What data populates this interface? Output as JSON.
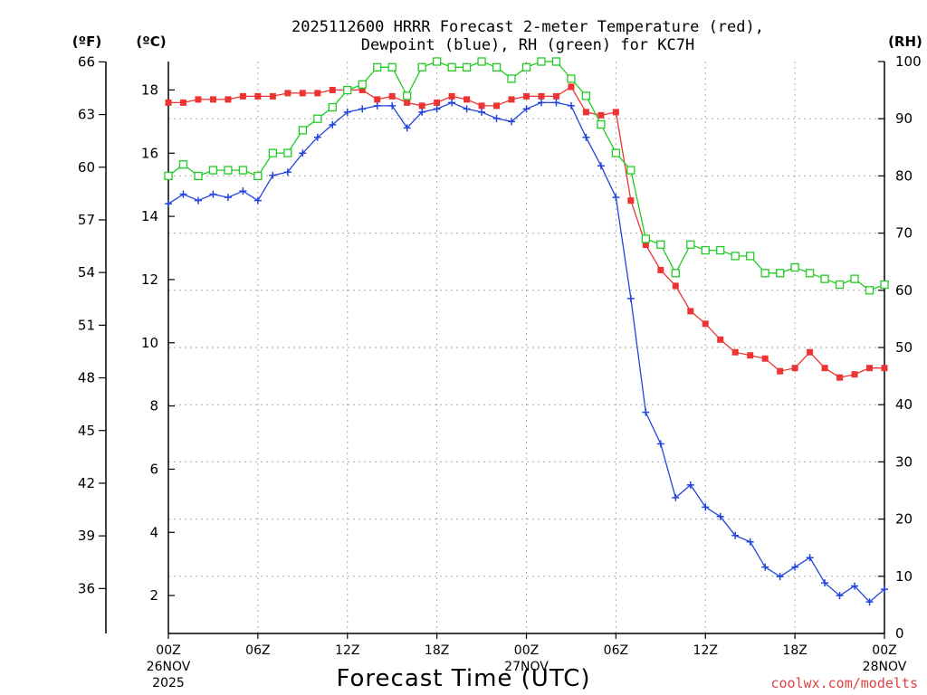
{
  "title_line1": "2025112600 HRRR Forecast 2-meter Temperature (red),",
  "title_line2": "Dewpoint (blue), RH (green) for KC7H",
  "unit_f": "(ºF)",
  "unit_c": "(ºC)",
  "unit_rh": "(RH)",
  "xlabel": "Forecast Time (UTC)",
  "credit": "coolwx.com/modelts",
  "chart_data": {
    "type": "line",
    "title": "2025112600 HRRR Forecast 2-meter Temperature (red), Dewpoint (blue), RH (green) for KC7H",
    "xlabel": "Forecast Time (UTC)",
    "x_hours": [
      0,
      1,
      2,
      3,
      4,
      5,
      6,
      7,
      8,
      9,
      10,
      11,
      12,
      13,
      14,
      15,
      16,
      17,
      18,
      19,
      20,
      21,
      22,
      23,
      24,
      25,
      26,
      27,
      28,
      29,
      30,
      31,
      32,
      33,
      34,
      35,
      36,
      37,
      38,
      39,
      40,
      41,
      42,
      43,
      44,
      45,
      46,
      47,
      48
    ],
    "xlim": [
      0,
      48
    ],
    "x_ticks": [
      {
        "h": 0,
        "label": "00Z",
        "sub1": "26NOV",
        "sub2": "2025"
      },
      {
        "h": 6,
        "label": "06Z",
        "sub1": "",
        "sub2": ""
      },
      {
        "h": 12,
        "label": "12Z",
        "sub1": "",
        "sub2": ""
      },
      {
        "h": 18,
        "label": "18Z",
        "sub1": "",
        "sub2": ""
      },
      {
        "h": 24,
        "label": "00Z",
        "sub1": "27NOV",
        "sub2": ""
      },
      {
        "h": 30,
        "label": "06Z",
        "sub1": "",
        "sub2": ""
      },
      {
        "h": 36,
        "label": "12Z",
        "sub1": "",
        "sub2": ""
      },
      {
        "h": 42,
        "label": "18Z",
        "sub1": "",
        "sub2": ""
      },
      {
        "h": 48,
        "label": "00Z",
        "sub1": "28NOV",
        "sub2": ""
      }
    ],
    "ylim_c": [
      0.8,
      18.9
    ],
    "y_ticks_c": [
      "2",
      "4",
      "6",
      "8",
      "10",
      "12",
      "14",
      "16",
      "18"
    ],
    "y_ticks_f": [
      "36",
      "39",
      "42",
      "45",
      "48",
      "51",
      "54",
      "57",
      "60",
      "63",
      "66"
    ],
    "ylim_rh": [
      0,
      100
    ],
    "y_ticks_rh": [
      "0",
      "10",
      "20",
      "30",
      "40",
      "50",
      "60",
      "70",
      "80",
      "90",
      "100"
    ],
    "series": [
      {
        "name": "Temperature",
        "units": "C",
        "color": "#ee3333",
        "marker": "filled-square",
        "values": [
          17.6,
          17.6,
          17.7,
          17.7,
          17.7,
          17.8,
          17.8,
          17.8,
          17.9,
          17.9,
          17.9,
          18.0,
          18.0,
          18.0,
          17.7,
          17.8,
          17.6,
          17.5,
          17.6,
          17.8,
          17.7,
          17.5,
          17.5,
          17.7,
          17.8,
          17.8,
          17.8,
          18.1,
          17.3,
          17.2,
          17.3,
          14.5,
          13.1,
          12.3,
          11.8,
          11.0,
          10.6,
          10.1,
          9.7,
          9.6,
          9.5,
          9.1,
          9.2,
          9.7,
          9.2,
          8.9,
          9.0,
          9.2,
          9.2
        ]
      },
      {
        "name": "Dewpoint",
        "units": "C",
        "color": "#2244dd",
        "marker": "plus",
        "values": [
          14.4,
          14.7,
          14.5,
          14.7,
          14.6,
          14.8,
          14.5,
          15.3,
          15.4,
          16.0,
          16.5,
          16.9,
          17.3,
          17.4,
          17.5,
          17.5,
          16.8,
          17.3,
          17.4,
          17.6,
          17.4,
          17.3,
          17.1,
          17.0,
          17.4,
          17.6,
          17.6,
          17.5,
          16.5,
          15.6,
          14.6,
          11.4,
          7.8,
          6.8,
          5.1,
          5.5,
          4.8,
          4.5,
          3.9,
          3.7,
          2.9,
          2.6,
          2.9,
          3.2,
          2.4,
          2.0,
          2.3,
          1.8,
          2.2
        ]
      },
      {
        "name": "RH",
        "units": "%",
        "color": "#22cc22",
        "marker": "open-square",
        "values": [
          80,
          82,
          80,
          81,
          81,
          81,
          80,
          84,
          84,
          88,
          90,
          92,
          95,
          96,
          99,
          99,
          94,
          99,
          100,
          99,
          99,
          100,
          99,
          97,
          99,
          100,
          100,
          97,
          94,
          89,
          84,
          81,
          69,
          68,
          63,
          68,
          67,
          67,
          66,
          66,
          63,
          63,
          64,
          63,
          62,
          61,
          62,
          60,
          61
        ]
      }
    ]
  }
}
